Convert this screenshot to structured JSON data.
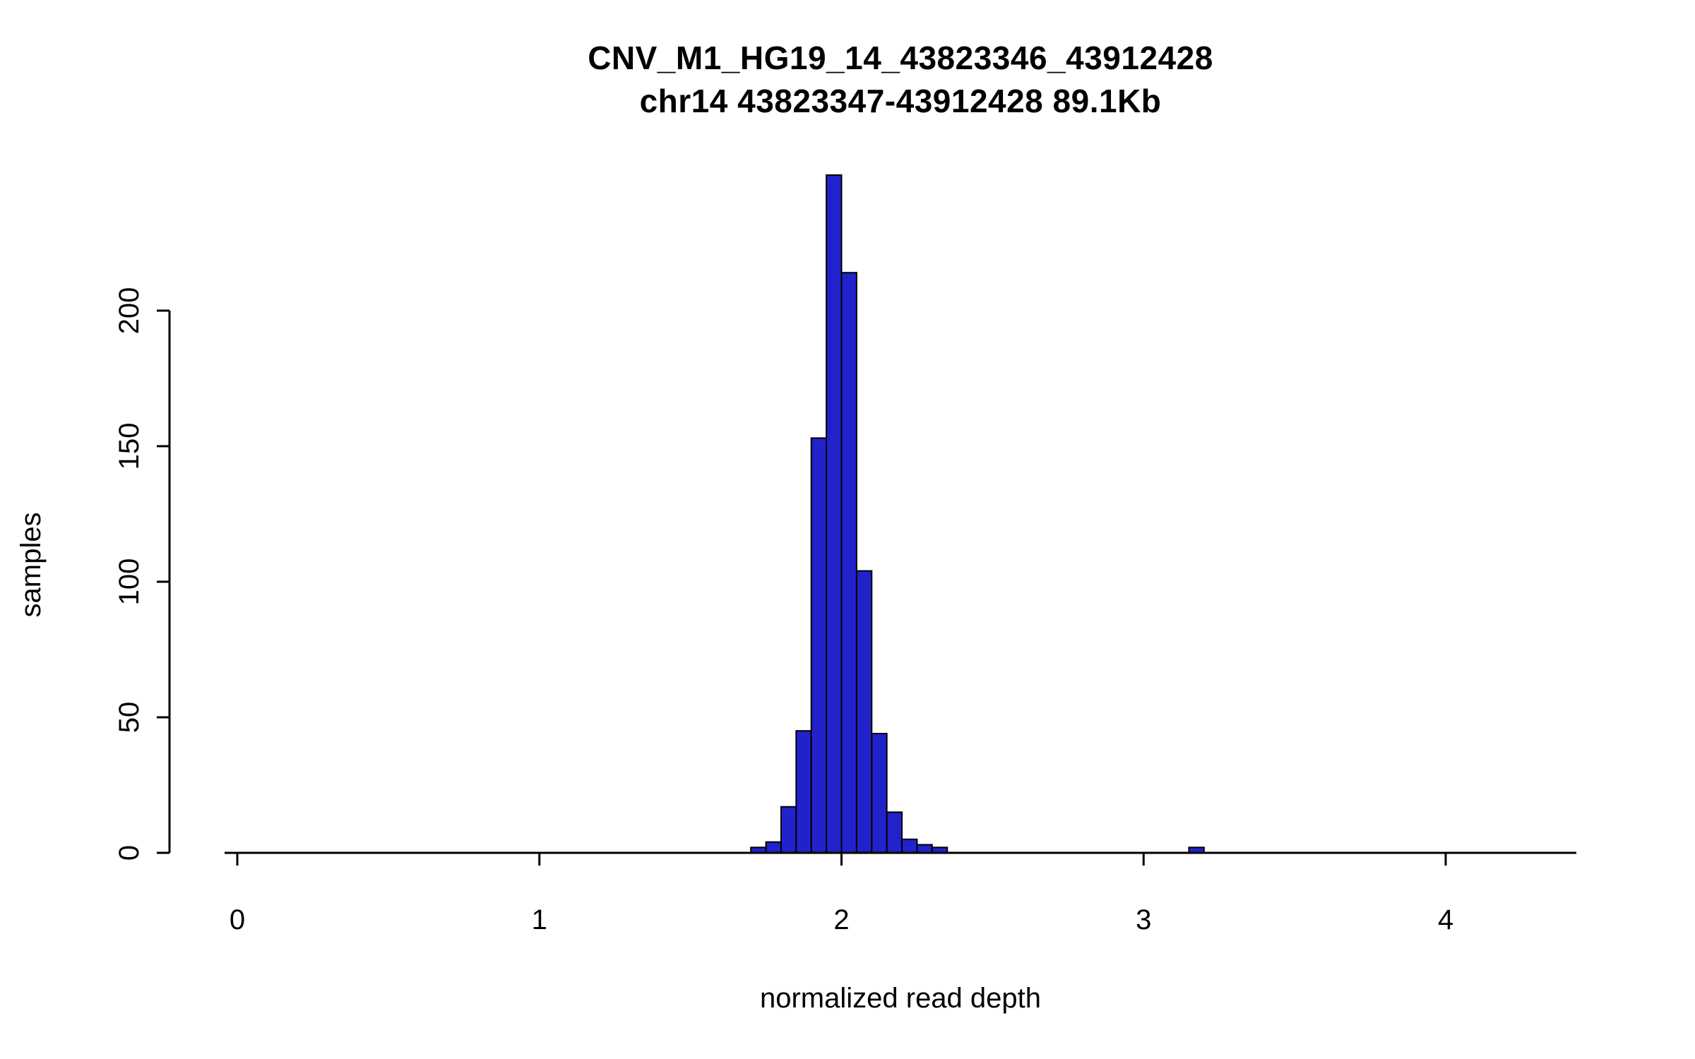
{
  "title": {
    "line1": "CNV_M1_HG19_14_43823346_43912428",
    "line2": "chr14 43823347-43912428 89.1Kb"
  },
  "chart_data": {
    "type": "bar",
    "subtype": "histogram",
    "title": "CNV_M1_HG19_14_43823346_43912428",
    "subtitle": "chr14 43823347-43912428 89.1Kb",
    "xlabel": "normalized read depth",
    "ylabel": "samples",
    "xlim": [
      0,
      4.45
    ],
    "ylim": [
      0,
      250
    ],
    "xticks": [
      0,
      1,
      2,
      3,
      4
    ],
    "yticks": [
      0,
      50,
      100,
      150,
      200
    ],
    "grid": false,
    "legend": "none",
    "bin_width": 0.05,
    "bins": [
      {
        "x": 1.7,
        "n": 2
      },
      {
        "x": 1.75,
        "n": 4
      },
      {
        "x": 1.8,
        "n": 17
      },
      {
        "x": 1.85,
        "n": 45
      },
      {
        "x": 1.9,
        "n": 153
      },
      {
        "x": 1.95,
        "n": 250
      },
      {
        "x": 2.0,
        "n": 214
      },
      {
        "x": 2.05,
        "n": 104
      },
      {
        "x": 2.1,
        "n": 44
      },
      {
        "x": 2.15,
        "n": 15
      },
      {
        "x": 2.2,
        "n": 5
      },
      {
        "x": 2.25,
        "n": 3
      },
      {
        "x": 2.3,
        "n": 2
      },
      {
        "x": 3.15,
        "n": 2
      }
    ],
    "bar_fill": "#2222CC",
    "bar_stroke": "#000000",
    "axis_color": "#000000"
  }
}
